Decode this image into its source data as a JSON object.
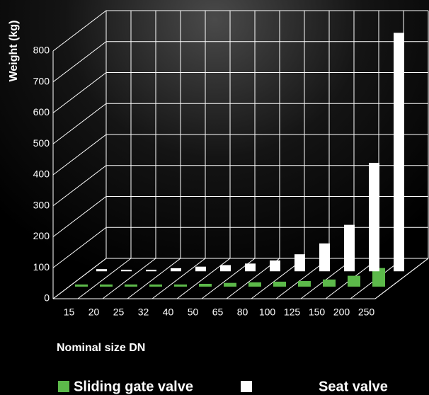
{
  "chart_data": {
    "type": "bar3d",
    "y_label": "Weight (kg)",
    "x_label": "Nominal size DN",
    "categories": [
      "15",
      "20",
      "25",
      "32",
      "40",
      "50",
      "65",
      "80",
      "100",
      "125",
      "150",
      "200",
      "250"
    ],
    "series": [
      {
        "name": "Sliding gate valve",
        "color": "#5cb94a",
        "values": [
          7,
          7,
          7,
          7,
          7,
          9,
          12,
          14,
          16,
          18,
          23,
          35,
          60
        ]
      },
      {
        "name": "Seat valve",
        "color": "#ffffff",
        "values": [
          7,
          5,
          5,
          10,
          15,
          20,
          25,
          35,
          55,
          90,
          150,
          350,
          770
        ]
      }
    ],
    "ylim": [
      0,
      800
    ],
    "yticks": [
      0,
      100,
      200,
      300,
      400,
      500,
      600,
      700,
      800
    ],
    "grid": true
  }
}
